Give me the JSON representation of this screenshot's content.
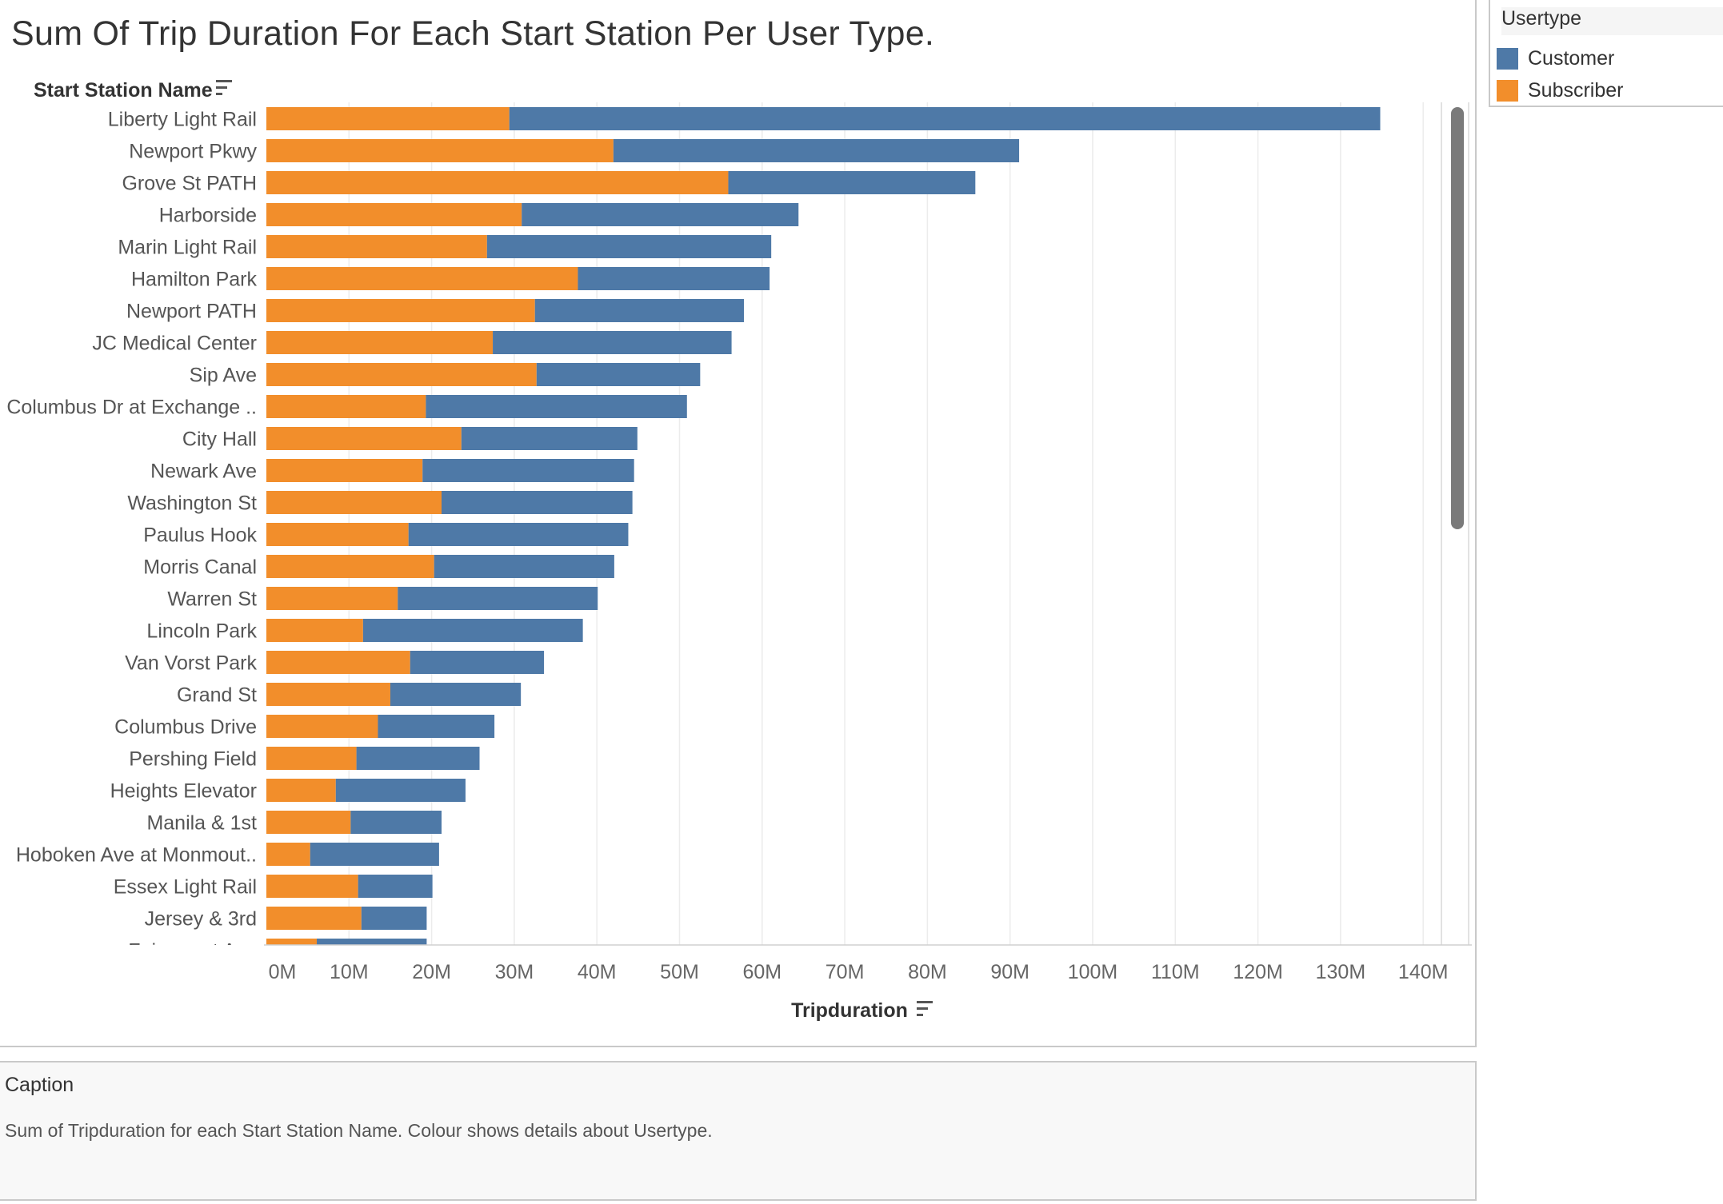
{
  "chart_data": {
    "type": "bar",
    "orientation": "horizontal",
    "stacked": true,
    "title": "Sum Of Trip Duration For Each Start Station Per User Type.",
    "ylabel": "Start Station Name",
    "xlabel": "Tripduration",
    "xlim": [
      0,
      145000000
    ],
    "x_ticks": [
      {
        "value": 0,
        "label": "0M"
      },
      {
        "value": 10000000,
        "label": "10M"
      },
      {
        "value": 20000000,
        "label": "20M"
      },
      {
        "value": 30000000,
        "label": "30M"
      },
      {
        "value": 40000000,
        "label": "40M"
      },
      {
        "value": 50000000,
        "label": "50M"
      },
      {
        "value": 60000000,
        "label": "60M"
      },
      {
        "value": 70000000,
        "label": "70M"
      },
      {
        "value": 80000000,
        "label": "80M"
      },
      {
        "value": 90000000,
        "label": "90M"
      },
      {
        "value": 100000000,
        "label": "100M"
      },
      {
        "value": 110000000,
        "label": "110M"
      },
      {
        "value": 120000000,
        "label": "120M"
      },
      {
        "value": 130000000,
        "label": "130M"
      },
      {
        "value": 140000000,
        "label": "140M"
      }
    ],
    "grid": true,
    "legend_position": "top-right",
    "categories": [
      "Liberty Light Rail",
      "Newport Pkwy",
      "Grove St PATH",
      "Harborside",
      "Marin Light Rail",
      "Hamilton Park",
      "Newport PATH",
      "JC Medical Center",
      "Sip Ave",
      "Columbus Dr at Exchange ..",
      "City Hall",
      "Newark Ave",
      "Washington St",
      "Paulus Hook",
      "Morris Canal",
      "Warren St",
      "Lincoln Park",
      "Van Vorst Park",
      "Grand St",
      "Columbus Drive",
      "Pershing Field",
      "Heights Elevator",
      "Manila & 1st",
      "Hoboken Ave at Monmout..",
      "Essex Light Rail",
      "Jersey & 3rd",
      "Fairmount Ave"
    ],
    "series": [
      {
        "name": "Subscriber",
        "color": "#f28e2b",
        "values": [
          29400000,
          42000000,
          55900000,
          30900000,
          26700000,
          37700000,
          32500000,
          27400000,
          32700000,
          19300000,
          23600000,
          18900000,
          21200000,
          17200000,
          20300000,
          15900000,
          11700000,
          17400000,
          15000000,
          13500000,
          10900000,
          8400000,
          10200000,
          5300000,
          11100000,
          11500000,
          6100000
        ]
      },
      {
        "name": "Customer",
        "color": "#4e79a7",
        "values": [
          105400000,
          49100000,
          29900000,
          33500000,
          34400000,
          23200000,
          25300000,
          28900000,
          19800000,
          31600000,
          21300000,
          25600000,
          23100000,
          26600000,
          21800000,
          24200000,
          26600000,
          16200000,
          15800000,
          14100000,
          14900000,
          15700000,
          11000000,
          15600000,
          9000000,
          7900000,
          13300000
        ]
      }
    ]
  },
  "legend": {
    "title": "Usertype",
    "items": [
      {
        "label": "Customer",
        "color": "#4e79a7"
      },
      {
        "label": "Subscriber",
        "color": "#f28e2b"
      }
    ]
  },
  "caption": {
    "title": "Caption",
    "text": "Sum of Tripduration for each Start Station Name. Colour shows details about Usertype."
  }
}
